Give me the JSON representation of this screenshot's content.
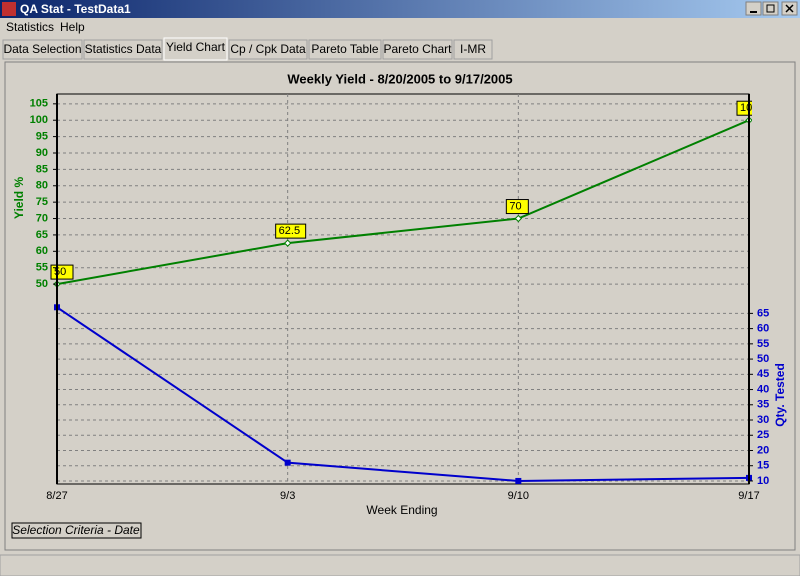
{
  "window": {
    "title": "QA Stat - TestData1"
  },
  "menu": [
    "Statistics",
    "Help"
  ],
  "tabs": [
    "Data Selection",
    "Statistics Data",
    "Yield Chart",
    "Cp / Cpk Data",
    "Pareto Table",
    "Pareto Chart",
    "I-MR"
  ],
  "chart_data": {
    "type": "line",
    "title": "Weekly Yield - 8/20/2005 to 9/17/2005",
    "x_label": "Week Ending",
    "y_label": "Yield %",
    "y2_label": "Qty. Tested",
    "annotation": "Selection Criteria - Date",
    "categories": [
      "8/27",
      "9/3",
      "9/10",
      "9/17"
    ],
    "series": [
      {
        "name": "Yield %",
        "color": "#008000",
        "values": [
          50,
          62.5,
          70,
          100
        ]
      },
      {
        "name": "Qty. Tested",
        "color": "#0000cc",
        "axis": "y2",
        "values": [
          67,
          16,
          10,
          11
        ]
      }
    ],
    "ylim": [
      -11,
      108
    ],
    "yticks": [
      50,
      55,
      60,
      65,
      70,
      75,
      80,
      85,
      90,
      95,
      100,
      105
    ],
    "y2lim": [
      9,
      137
    ],
    "y2ticks": [
      10,
      15,
      20,
      25,
      30,
      35,
      40,
      45,
      50,
      55,
      60,
      65
    ],
    "grid": true
  }
}
